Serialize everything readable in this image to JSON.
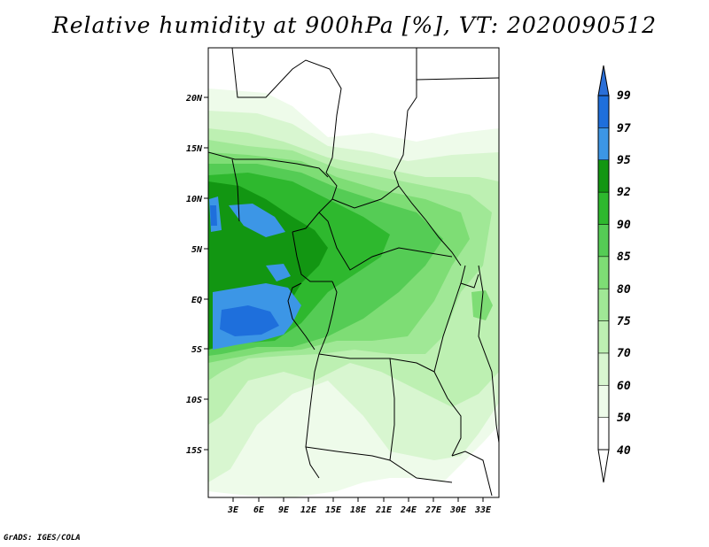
{
  "title": "Relative humidity at 900hPa [%], VT: 2020090512",
  "footer": "GrADS: IGES/COLA",
  "map": {
    "lon_ticks": [
      "3E",
      "6E",
      "9E",
      "12E",
      "15E",
      "18E",
      "21E",
      "24E",
      "27E",
      "30E",
      "33E"
    ],
    "lat_ticks": [
      "20N",
      "15N",
      "10N",
      "5N",
      "EQ",
      "5S",
      "10S",
      "15S"
    ]
  },
  "colorbar": {
    "levels": [
      "99",
      "97",
      "95",
      "92",
      "90",
      "85",
      "80",
      "75",
      "70",
      "60",
      "50",
      "40"
    ],
    "colors": [
      "#ffffff",
      "#eefbea",
      "#d8f6d0",
      "#bdf0b2",
      "#a0e896",
      "#7edd75",
      "#55cc55",
      "#2eb82e",
      "#129612",
      "#3c96e6",
      "#1e6fdc"
    ]
  },
  "colors": {
    "top_arrow": "#2a6fd8"
  }
}
